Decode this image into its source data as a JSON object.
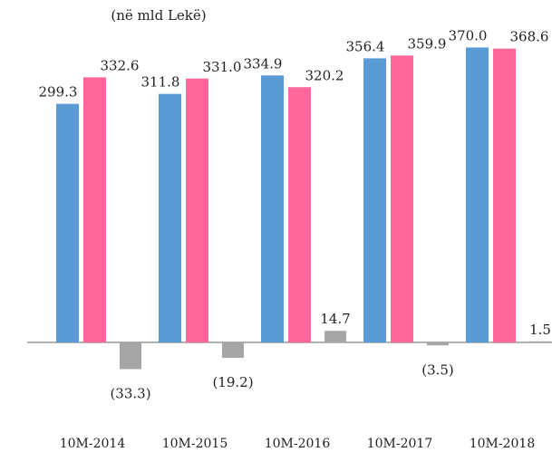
{
  "chart_data": {
    "type": "bar",
    "title": "(në mld Lekë)",
    "categories": [
      "10M-2014",
      "10M-2015",
      "10M-2016",
      "10M-2017",
      "10M-2018"
    ],
    "series": [
      {
        "color": "#5b9bd5",
        "values": [
          299.3,
          311.8,
          334.9,
          356.4,
          370.0
        ],
        "value_labels": [
          "299.3",
          "311.8",
          "334.9",
          "356.4",
          "370.0"
        ]
      },
      {
        "color": "#ff6699",
        "values": [
          332.6,
          331.0,
          320.2,
          359.9,
          368.6
        ],
        "value_labels": [
          "332.6",
          "331.0",
          "320.2",
          "359.9",
          "368.6"
        ]
      },
      {
        "color": "#a6a6a6",
        "values": [
          -33.3,
          -19.2,
          14.7,
          -3.5,
          1.5
        ],
        "value_labels": [
          "(33.3)",
          "(19.2)",
          "14.7",
          "(3.5)",
          "1.5"
        ]
      }
    ],
    "ylim": [
      -60,
      400
    ]
  }
}
